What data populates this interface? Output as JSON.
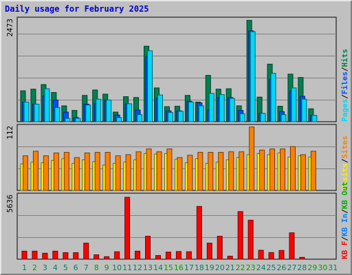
{
  "title": "Daily usage for February 2025",
  "colors": {
    "pages": "#00d8f8",
    "files": "#0050ff",
    "hits": "#008050",
    "visits": "#f8f000",
    "sites": "#ff8000",
    "kbf": "#ff0000",
    "kbin": "#0080ff",
    "kbout": "#00b000",
    "weekday_label": "#008060",
    "weekend_label": "#00a000",
    "sep": "#000000"
  },
  "chart_data": [
    {
      "type": "bar",
      "panel": "hits-files-pages",
      "ymax_label": "2473",
      "ylim": [
        0,
        2473
      ],
      "legend": [
        {
          "text": "Pages",
          "color": "pages"
        },
        {
          "text": "Files",
          "color": "files"
        },
        {
          "text": "Hits",
          "color": "hits"
        }
      ],
      "series": [
        {
          "name": "Hits",
          "color": "hits",
          "values": [
            740,
            780,
            890,
            700,
            380,
            270,
            630,
            760,
            660,
            230,
            600,
            580,
            1810,
            810,
            360,
            370,
            630,
            470,
            1110,
            780,
            790,
            380,
            2430,
            590,
            1380,
            370,
            1140,
            1060,
            310,
            null,
            null
          ]
        },
        {
          "name": "Files",
          "color": "files",
          "values": [
            470,
            420,
            620,
            520,
            230,
            100,
            420,
            440,
            520,
            160,
            430,
            280,
            1560,
            560,
            260,
            260,
            490,
            450,
            280,
            580,
            580,
            270,
            2180,
            200,
            1020,
            240,
            730,
            610,
            150,
            null,
            null
          ]
        },
        {
          "name": "Pages",
          "color": "pages",
          "values": [
            470,
            420,
            790,
            340,
            80,
            80,
            400,
            540,
            520,
            100,
            430,
            170,
            1700,
            640,
            220,
            250,
            470,
            380,
            680,
            650,
            560,
            190,
            2160,
            200,
            1160,
            170,
            810,
            540,
            150,
            null,
            null
          ]
        }
      ]
    },
    {
      "type": "bar",
      "panel": "sites-visits",
      "ymax_label": "112",
      "ylim": [
        0,
        112
      ],
      "legend": [
        {
          "text": "Visits",
          "color": "visits"
        },
        {
          "text": "Sites",
          "color": "sites"
        }
      ],
      "series": [
        {
          "name": "Visits",
          "color": "visits",
          "values": [
            46,
            49,
            48,
            52,
            55,
            47,
            53,
            50,
            44,
            47,
            49,
            53,
            64,
            63,
            64,
            54,
            48,
            55,
            47,
            49,
            53,
            57,
            62,
            64,
            62,
            65,
            58,
            60,
            58,
            null,
            null
          ]
        },
        {
          "name": "Sites",
          "color": "sites",
          "values": [
            60,
            68,
            60,
            65,
            66,
            57,
            65,
            66,
            66,
            60,
            62,
            67,
            72,
            67,
            72,
            57,
            61,
            66,
            66,
            66,
            67,
            67,
            110,
            70,
            72,
            72,
            76,
            62,
            68,
            null,
            null
          ]
        }
      ]
    },
    {
      "type": "bar",
      "panel": "kbytes",
      "ymax_label": "5636",
      "ylim": [
        0,
        5636
      ],
      "legend": [
        {
          "text": "KB F",
          "color": "kbf"
        },
        {
          "text": "KB In",
          "color": "kbin"
        },
        {
          "text": "KB Out",
          "color": "kbout"
        }
      ],
      "series": [
        {
          "name": "KB F",
          "color": "kbf",
          "values": [
            700,
            700,
            520,
            700,
            570,
            570,
            1400,
            380,
            220,
            650,
            5400,
            700,
            2000,
            320,
            620,
            670,
            650,
            4600,
            1400,
            2000,
            260,
            4150,
            3400,
            780,
            580,
            760,
            2300,
            160,
            null,
            null,
            null
          ]
        }
      ]
    }
  ],
  "x_labels": [
    "1",
    "2",
    "3",
    "4",
    "5",
    "6",
    "7",
    "8",
    "9",
    "10",
    "11",
    "12",
    "13",
    "14",
    "15",
    "16",
    "17",
    "18",
    "19",
    "20",
    "21",
    "22",
    "23",
    "24",
    "25",
    "26",
    "27",
    "28",
    "29",
    "30",
    "31"
  ],
  "weekend_days": [
    1,
    7,
    8,
    14,
    15,
    21,
    22,
    28,
    29
  ]
}
